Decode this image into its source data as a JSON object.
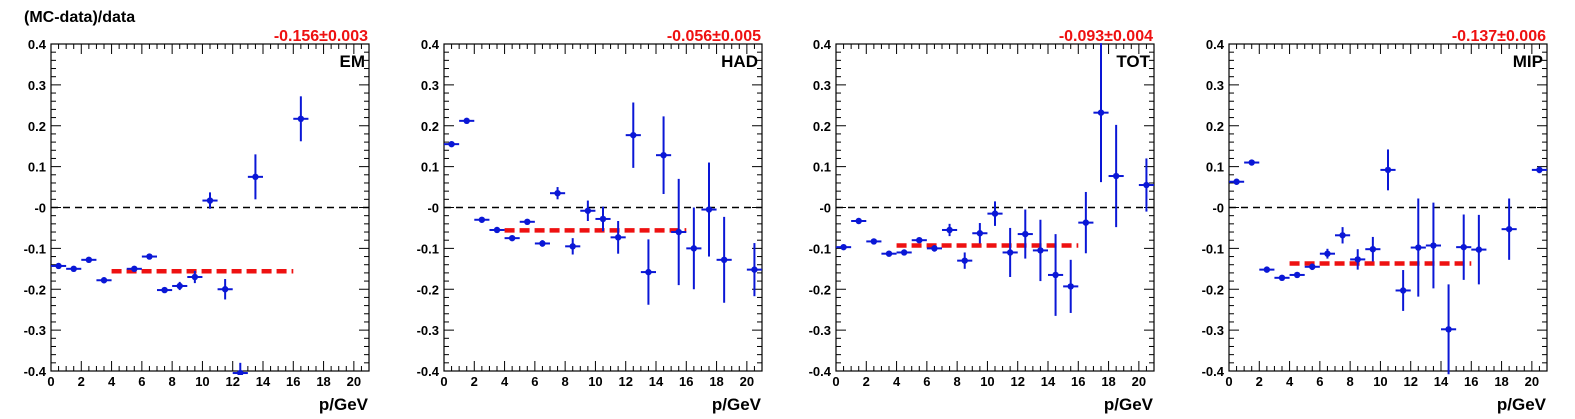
{
  "ylabel": "(MC-data)/data",
  "xlabel": "p/GeV",
  "colors": {
    "points": "#0a17d6",
    "fit": "#ee1111",
    "zero": "#000000",
    "fit_text": "#ee1111"
  },
  "chart_data": [
    {
      "type": "scatter",
      "label": "EM",
      "fit_text": "-0.156±0.003",
      "fit": {
        "value": -0.156,
        "xrange": [
          4,
          16
        ]
      },
      "xlim": [
        0,
        21
      ],
      "ylim": [
        -0.4,
        0.4
      ],
      "xticks": [
        "0",
        "2",
        "4",
        "6",
        "8",
        "10",
        "12",
        "14",
        "16",
        "18",
        "20"
      ],
      "yticks": [
        "-0.4",
        "-0.3",
        "-0.2",
        "-0.1",
        "-0",
        "0.1",
        "0.2",
        "0.3",
        "0.4"
      ],
      "points": [
        {
          "x": 0.5,
          "y": -0.143,
          "err": 0.005
        },
        {
          "x": 1.5,
          "y": -0.15,
          "err": 0.005
        },
        {
          "x": 2.5,
          "y": -0.128,
          "err": 0.005
        },
        {
          "x": 3.5,
          "y": -0.178,
          "err": 0.006
        },
        {
          "x": 5.5,
          "y": -0.15,
          "err": 0.006
        },
        {
          "x": 6.5,
          "y": -0.12,
          "err": 0.006
        },
        {
          "x": 7.5,
          "y": -0.202,
          "err": 0.006
        },
        {
          "x": 8.5,
          "y": -0.192,
          "err": 0.01
        },
        {
          "x": 9.5,
          "y": -0.17,
          "err": 0.015
        },
        {
          "x": 10.5,
          "y": 0.017,
          "err": 0.02
        },
        {
          "x": 11.5,
          "y": -0.2,
          "err": 0.025
        },
        {
          "x": 12.5,
          "y": -0.405,
          "err": 0.025
        },
        {
          "x": 13.5,
          "y": 0.075,
          "err": 0.055
        },
        {
          "x": 16.5,
          "y": 0.217,
          "err": 0.055
        }
      ]
    },
    {
      "type": "scatter",
      "label": "HAD",
      "fit_text": "-0.056±0.005",
      "fit": {
        "value": -0.056,
        "xrange": [
          4,
          16
        ]
      },
      "xlim": [
        0,
        21
      ],
      "ylim": [
        -0.4,
        0.4
      ],
      "xticks": [
        "0",
        "2",
        "4",
        "6",
        "8",
        "10",
        "12",
        "14",
        "16",
        "18",
        "20"
      ],
      "yticks": [
        "-0.4",
        "-0.3",
        "-0.2",
        "-0.1",
        "-0",
        "0.1",
        "0.2",
        "0.3",
        "0.4"
      ],
      "points": [
        {
          "x": 0.5,
          "y": 0.155,
          "err": 0.005
        },
        {
          "x": 1.5,
          "y": 0.212,
          "err": 0.005
        },
        {
          "x": 2.5,
          "y": -0.03,
          "err": 0.005
        },
        {
          "x": 3.5,
          "y": -0.055,
          "err": 0.005
        },
        {
          "x": 4.5,
          "y": -0.075,
          "err": 0.006
        },
        {
          "x": 5.5,
          "y": -0.035,
          "err": 0.006
        },
        {
          "x": 6.5,
          "y": -0.088,
          "err": 0.008
        },
        {
          "x": 7.5,
          "y": 0.035,
          "err": 0.015
        },
        {
          "x": 8.5,
          "y": -0.095,
          "err": 0.02
        },
        {
          "x": 9.5,
          "y": -0.008,
          "err": 0.025
        },
        {
          "x": 10.5,
          "y": -0.028,
          "err": 0.03
        },
        {
          "x": 11.5,
          "y": -0.073,
          "err": 0.04
        },
        {
          "x": 12.5,
          "y": 0.177,
          "err": 0.08
        },
        {
          "x": 13.5,
          "y": -0.158,
          "err": 0.08
        },
        {
          "x": 14.5,
          "y": 0.128,
          "err": 0.095
        },
        {
          "x": 15.5,
          "y": -0.06,
          "err": 0.13
        },
        {
          "x": 16.5,
          "y": -0.1,
          "err": 0.1
        },
        {
          "x": 17.5,
          "y": -0.005,
          "err": 0.115
        },
        {
          "x": 18.5,
          "y": -0.128,
          "err": 0.105
        },
        {
          "x": 20.5,
          "y": -0.152,
          "err": 0.065
        }
      ]
    },
    {
      "type": "scatter",
      "label": "TOT",
      "fit_text": "-0.093±0.004",
      "fit": {
        "value": -0.093,
        "xrange": [
          4,
          16
        ]
      },
      "xlim": [
        0,
        21
      ],
      "ylim": [
        -0.4,
        0.4
      ],
      "xticks": [
        "0",
        "2",
        "4",
        "6",
        "8",
        "10",
        "12",
        "14",
        "16",
        "18",
        "20"
      ],
      "yticks": [
        "-0.4",
        "-0.3",
        "-0.2",
        "-0.1",
        "-0",
        "0.1",
        "0.2",
        "0.3",
        "0.4"
      ],
      "points": [
        {
          "x": 0.5,
          "y": -0.097,
          "err": 0.005
        },
        {
          "x": 1.5,
          "y": -0.033,
          "err": 0.005
        },
        {
          "x": 2.5,
          "y": -0.083,
          "err": 0.005
        },
        {
          "x": 3.5,
          "y": -0.113,
          "err": 0.005
        },
        {
          "x": 4.5,
          "y": -0.11,
          "err": 0.006
        },
        {
          "x": 5.5,
          "y": -0.08,
          "err": 0.006
        },
        {
          "x": 6.5,
          "y": -0.1,
          "err": 0.008
        },
        {
          "x": 7.5,
          "y": -0.055,
          "err": 0.015
        },
        {
          "x": 8.5,
          "y": -0.13,
          "err": 0.02
        },
        {
          "x": 9.5,
          "y": -0.063,
          "err": 0.025
        },
        {
          "x": 10.5,
          "y": -0.015,
          "err": 0.03
        },
        {
          "x": 11.5,
          "y": -0.11,
          "err": 0.06
        },
        {
          "x": 12.5,
          "y": -0.065,
          "err": 0.06
        },
        {
          "x": 13.5,
          "y": -0.105,
          "err": 0.075
        },
        {
          "x": 14.5,
          "y": -0.165,
          "err": 0.1
        },
        {
          "x": 15.5,
          "y": -0.193,
          "err": 0.065
        },
        {
          "x": 16.5,
          "y": -0.037,
          "err": 0.075
        },
        {
          "x": 17.5,
          "y": 0.232,
          "err": 0.17
        },
        {
          "x": 18.5,
          "y": 0.077,
          "err": 0.125
        },
        {
          "x": 20.5,
          "y": 0.055,
          "err": 0.065
        }
      ]
    },
    {
      "type": "scatter",
      "label": "MIP",
      "fit_text": "-0.137±0.006",
      "fit": {
        "value": -0.137,
        "xrange": [
          4,
          16
        ]
      },
      "xlim": [
        0,
        21
      ],
      "ylim": [
        -0.4,
        0.4
      ],
      "xticks": [
        "0",
        "2",
        "4",
        "6",
        "8",
        "10",
        "12",
        "14",
        "16",
        "18",
        "20"
      ],
      "yticks": [
        "-0.4",
        "-0.3",
        "-0.2",
        "-0.1",
        "-0",
        "0.1",
        "0.2",
        "0.3",
        "0.4"
      ],
      "points": [
        {
          "x": 0.5,
          "y": 0.063,
          "err": 0.005
        },
        {
          "x": 1.5,
          "y": 0.11,
          "err": 0.005
        },
        {
          "x": 2.5,
          "y": -0.152,
          "err": 0.005
        },
        {
          "x": 3.5,
          "y": -0.172,
          "err": 0.005
        },
        {
          "x": 4.5,
          "y": -0.165,
          "err": 0.006
        },
        {
          "x": 5.5,
          "y": -0.145,
          "err": 0.008
        },
        {
          "x": 6.5,
          "y": -0.113,
          "err": 0.012
        },
        {
          "x": 7.5,
          "y": -0.068,
          "err": 0.02
        },
        {
          "x": 8.5,
          "y": -0.127,
          "err": 0.025
        },
        {
          "x": 9.5,
          "y": -0.102,
          "err": 0.03
        },
        {
          "x": 10.5,
          "y": 0.092,
          "err": 0.05
        },
        {
          "x": 11.5,
          "y": -0.203,
          "err": 0.05
        },
        {
          "x": 12.5,
          "y": -0.098,
          "err": 0.12
        },
        {
          "x": 13.5,
          "y": -0.093,
          "err": 0.105
        },
        {
          "x": 14.5,
          "y": -0.298,
          "err": 0.11
        },
        {
          "x": 15.5,
          "y": -0.097,
          "err": 0.08
        },
        {
          "x": 16.5,
          "y": -0.103,
          "err": 0.085
        },
        {
          "x": 18.5,
          "y": -0.053,
          "err": 0.075
        },
        {
          "x": 20.5,
          "y": 0.092,
          "err": 0.008
        }
      ]
    }
  ]
}
